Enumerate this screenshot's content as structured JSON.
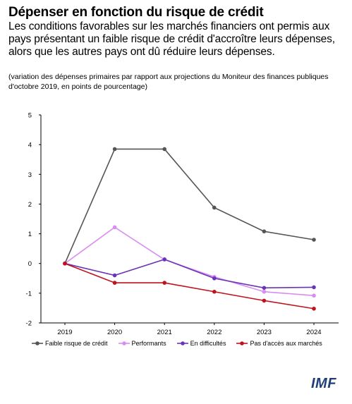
{
  "header": {
    "title": "Dépenser en fonction du risque de crédit",
    "subtitle": "Les conditions favorables sur les marchés financiers ont permis aux pays présentant un faible risque de crédit d'accroître leurs dépenses, alors que les autres pays ont dû réduire leurs dépenses.",
    "note": "(variation des dépenses primaires par rapport aux projections du Moniteur des finances publiques d'octobre 2019, en points de pourcentage)"
  },
  "logo": "IMF",
  "chart_data": {
    "type": "line",
    "title": "Dépenser en fonction du risque de crédit",
    "xlabel": "",
    "ylabel": "",
    "x": [
      "2019",
      "2020",
      "2021",
      "2022",
      "2023",
      "2024"
    ],
    "ylim": [
      -2,
      5
    ],
    "yticks": [
      "-2",
      "-1",
      "0",
      "1",
      "2",
      "3",
      "4",
      "5"
    ],
    "grid": false,
    "legend_position": "bottom",
    "series": [
      {
        "name": "Faible risque de crédit",
        "color": "#555555",
        "values": [
          0,
          3.85,
          3.85,
          1.88,
          1.08,
          0.8
        ]
      },
      {
        "name": "Performants",
        "color": "#d98cf2",
        "values": [
          0,
          1.22,
          0.13,
          -0.45,
          -0.95,
          -1.08
        ]
      },
      {
        "name": "En difficultés",
        "color": "#6a35b5",
        "values": [
          0,
          -0.4,
          0.14,
          -0.5,
          -0.82,
          -0.8
        ]
      },
      {
        "name": "Pas d'accès aux marchés",
        "color": "#c0121c",
        "values": [
          0,
          -0.65,
          -0.65,
          -0.95,
          -1.25,
          -1.52
        ]
      }
    ]
  }
}
